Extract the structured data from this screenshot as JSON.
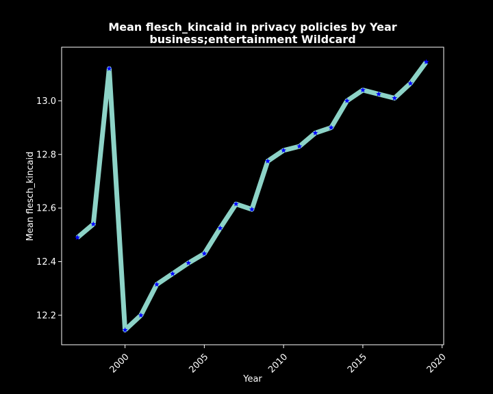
{
  "chart_data": {
    "type": "line",
    "title_line1": "Mean flesch_kincaid in privacy policies by Year",
    "title_line2": "business;entertainment Wildcard",
    "xlabel": "Year",
    "ylabel": "Mean flesch_kincaid",
    "xlim": [
      1996.0,
      2020.1
    ],
    "ylim": [
      12.09,
      13.2
    ],
    "x_ticks": [
      2000,
      2005,
      2010,
      2015,
      2020
    ],
    "y_ticks": [
      12.2,
      12.4,
      12.6,
      12.8,
      13.0
    ],
    "grid": false,
    "series": [
      {
        "x": [
          1997,
          1998,
          1999,
          2000,
          2001,
          2002,
          2003,
          2004,
          2005,
          2006,
          2007,
          2008,
          2009,
          2010,
          2011,
          2012,
          2013,
          2014,
          2015,
          2016,
          2017,
          2018,
          2019
        ],
        "values": [
          12.49,
          12.54,
          13.12,
          12.145,
          12.2,
          12.315,
          12.355,
          12.395,
          12.43,
          12.525,
          12.615,
          12.595,
          12.775,
          12.815,
          12.83,
          12.88,
          12.9,
          13.0,
          13.04,
          13.025,
          13.01,
          13.065,
          13.145
        ],
        "line_color": "#8dd3c7",
        "marker_color": "#0000ff",
        "marker": "star"
      }
    ]
  }
}
